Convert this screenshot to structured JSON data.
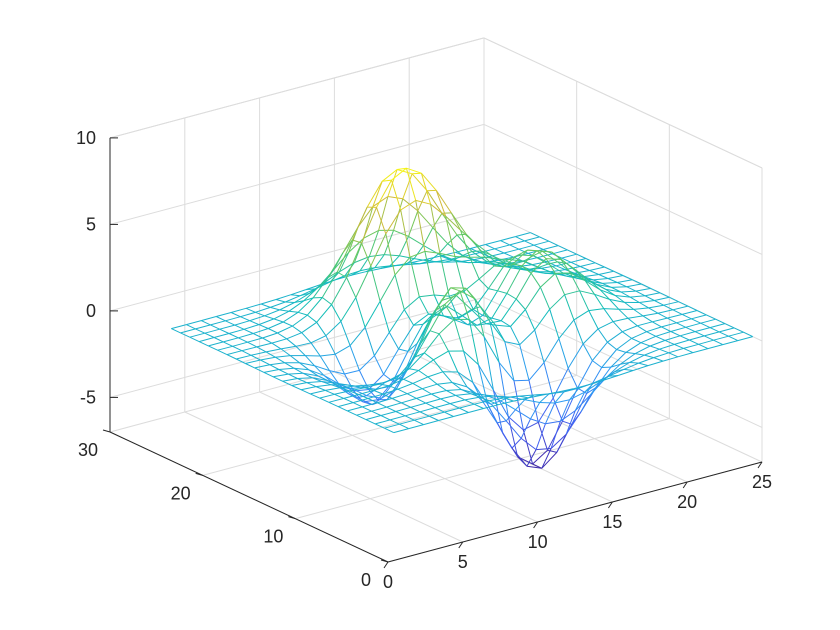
{
  "chart_data": {
    "type": "surface",
    "render": "mesh",
    "function": "peaks",
    "grid_size": [
      25,
      25
    ],
    "x": {
      "ticks": [
        0,
        5,
        10,
        15,
        20,
        25
      ],
      "tick_labels": [
        "0",
        "5",
        "10",
        "15",
        "20",
        "25"
      ],
      "range": [
        0,
        25
      ]
    },
    "y": {
      "ticks": [
        0,
        10,
        20,
        30
      ],
      "tick_labels": [
        "0",
        "10",
        "20",
        "30"
      ],
      "range": [
        0,
        30
      ]
    },
    "z": {
      "ticks": [
        -5,
        0,
        5,
        10
      ],
      "tick_labels": [
        "-5",
        "0",
        "5",
        "10"
      ],
      "range": [
        -7,
        10
      ]
    },
    "grid": true,
    "box": false,
    "colormap": [
      "#3e26a8",
      "#4361f2",
      "#2e9bf3",
      "#12beb9",
      "#5ec962",
      "#d2bb3a",
      "#f9fb14"
    ],
    "xlabel": "",
    "ylabel": "",
    "zlabel": "",
    "title": ""
  }
}
